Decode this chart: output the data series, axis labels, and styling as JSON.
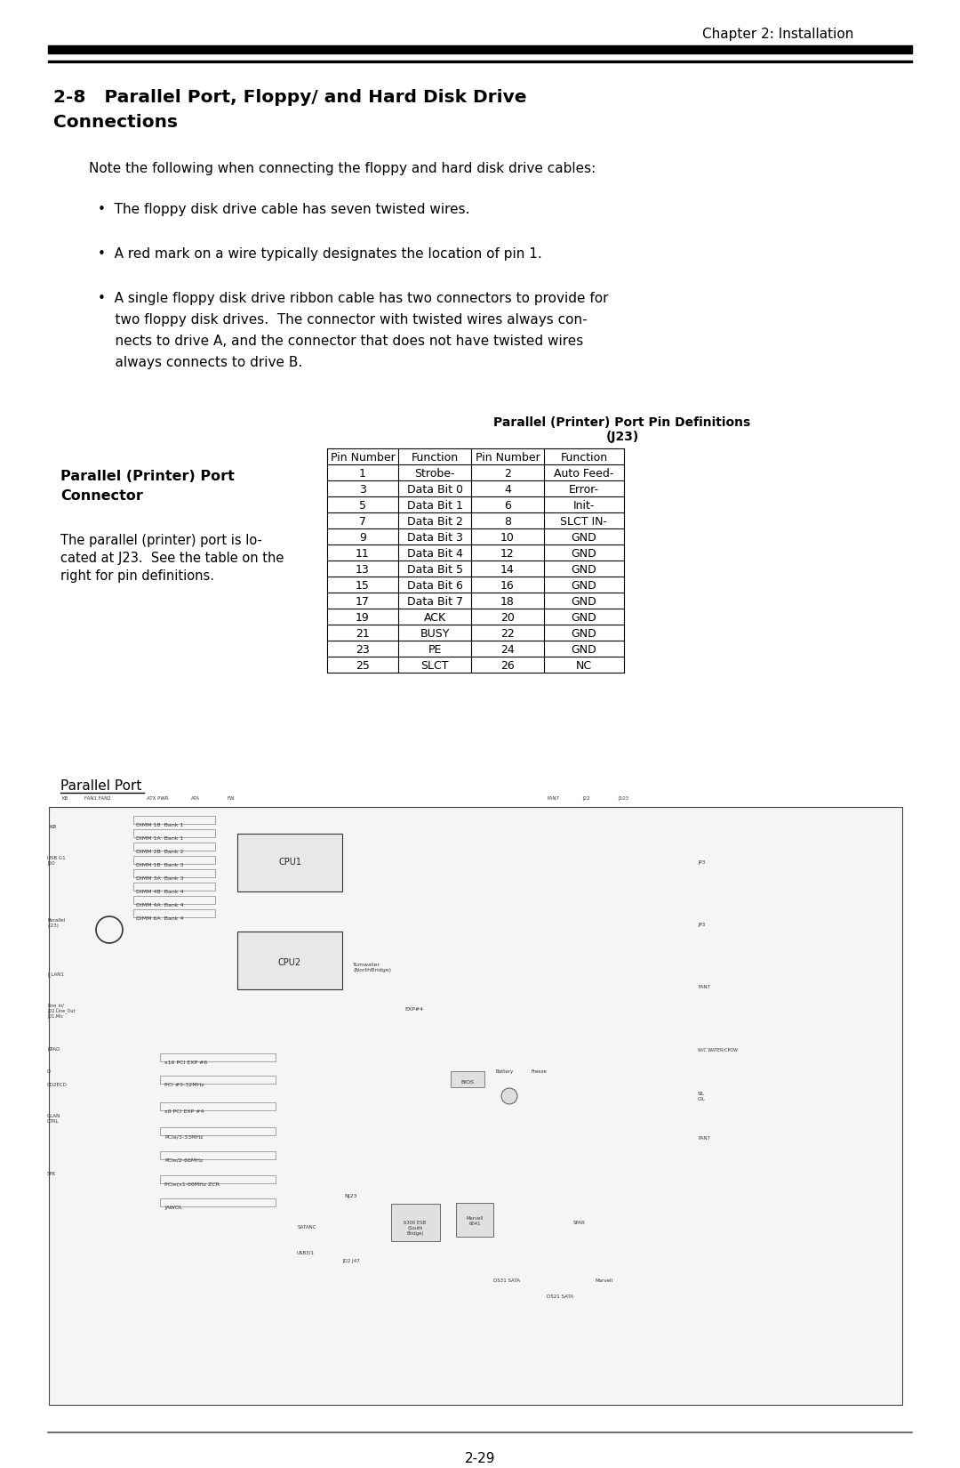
{
  "page_header": "Chapter 2: Installation",
  "table_title_line1": "Parallel (Printer) Port Pin Definitions",
  "table_title_line2": "(J23)",
  "table_headers": [
    "Pin Number",
    "Function",
    "Pin Number",
    "Function"
  ],
  "table_rows": [
    [
      "1",
      "Strobe-",
      "2",
      "Auto Feed-"
    ],
    [
      "3",
      "Data Bit 0",
      "4",
      "Error-"
    ],
    [
      "5",
      "Data Bit 1",
      "6",
      "Init-"
    ],
    [
      "7",
      "Data Bit 2",
      "8",
      "SLCT IN-"
    ],
    [
      "9",
      "Data Bit 3",
      "10",
      "GND"
    ],
    [
      "11",
      "Data Bit 4",
      "12",
      "GND"
    ],
    [
      "13",
      "Data Bit 5",
      "14",
      "GND"
    ],
    [
      "15",
      "Data Bit 6",
      "16",
      "GND"
    ],
    [
      "17",
      "Data Bit 7",
      "18",
      "GND"
    ],
    [
      "19",
      "ACK",
      "20",
      "GND"
    ],
    [
      "21",
      "BUSY",
      "22",
      "GND"
    ],
    [
      "23",
      "PE",
      "24",
      "GND"
    ],
    [
      "25",
      "SLCT",
      "26",
      "NC"
    ]
  ],
  "parallel_port_label": "Parallel Port",
  "page_number": "2-29",
  "bg_color": "#ffffff",
  "text_color": "#000000",
  "header_bar_color": "#000000",
  "table_border_color": "#000000"
}
